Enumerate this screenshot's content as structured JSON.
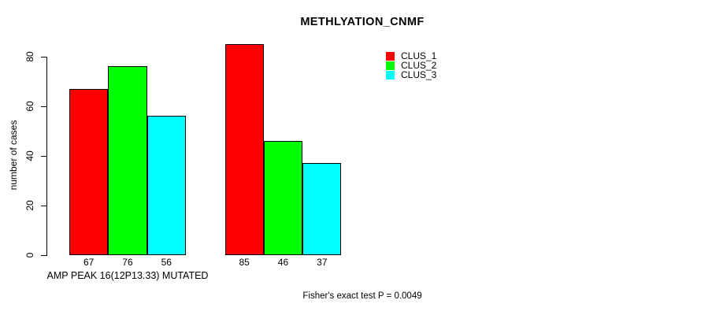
{
  "chart_data": {
    "type": "bar",
    "title": "METHLYATION_CNMF",
    "ylabel": "number of cases",
    "xlabel": "",
    "categories": [
      "AMP PEAK 16(12P13.33) MUTATED",
      ""
    ],
    "series": [
      {
        "name": "CLUS_1",
        "color": "#ff0000",
        "values": [
          67,
          85
        ]
      },
      {
        "name": "CLUS_2",
        "color": "#00ff00",
        "values": [
          76,
          46
        ]
      },
      {
        "name": "CLUS_3",
        "color": "#00ffff",
        "values": [
          56,
          37
        ]
      }
    ],
    "yticks": [
      0,
      20,
      40,
      60,
      80
    ],
    "ylim": [
      0,
      85
    ],
    "grid": false,
    "legend_position": "top-right",
    "bar_value_labels": true,
    "footnote": "Fisher's exact test P = 0.0049"
  },
  "colors": {
    "background": "#ffffff",
    "axis": "#000000",
    "text": "#000000",
    "bar_border": "#000000"
  }
}
